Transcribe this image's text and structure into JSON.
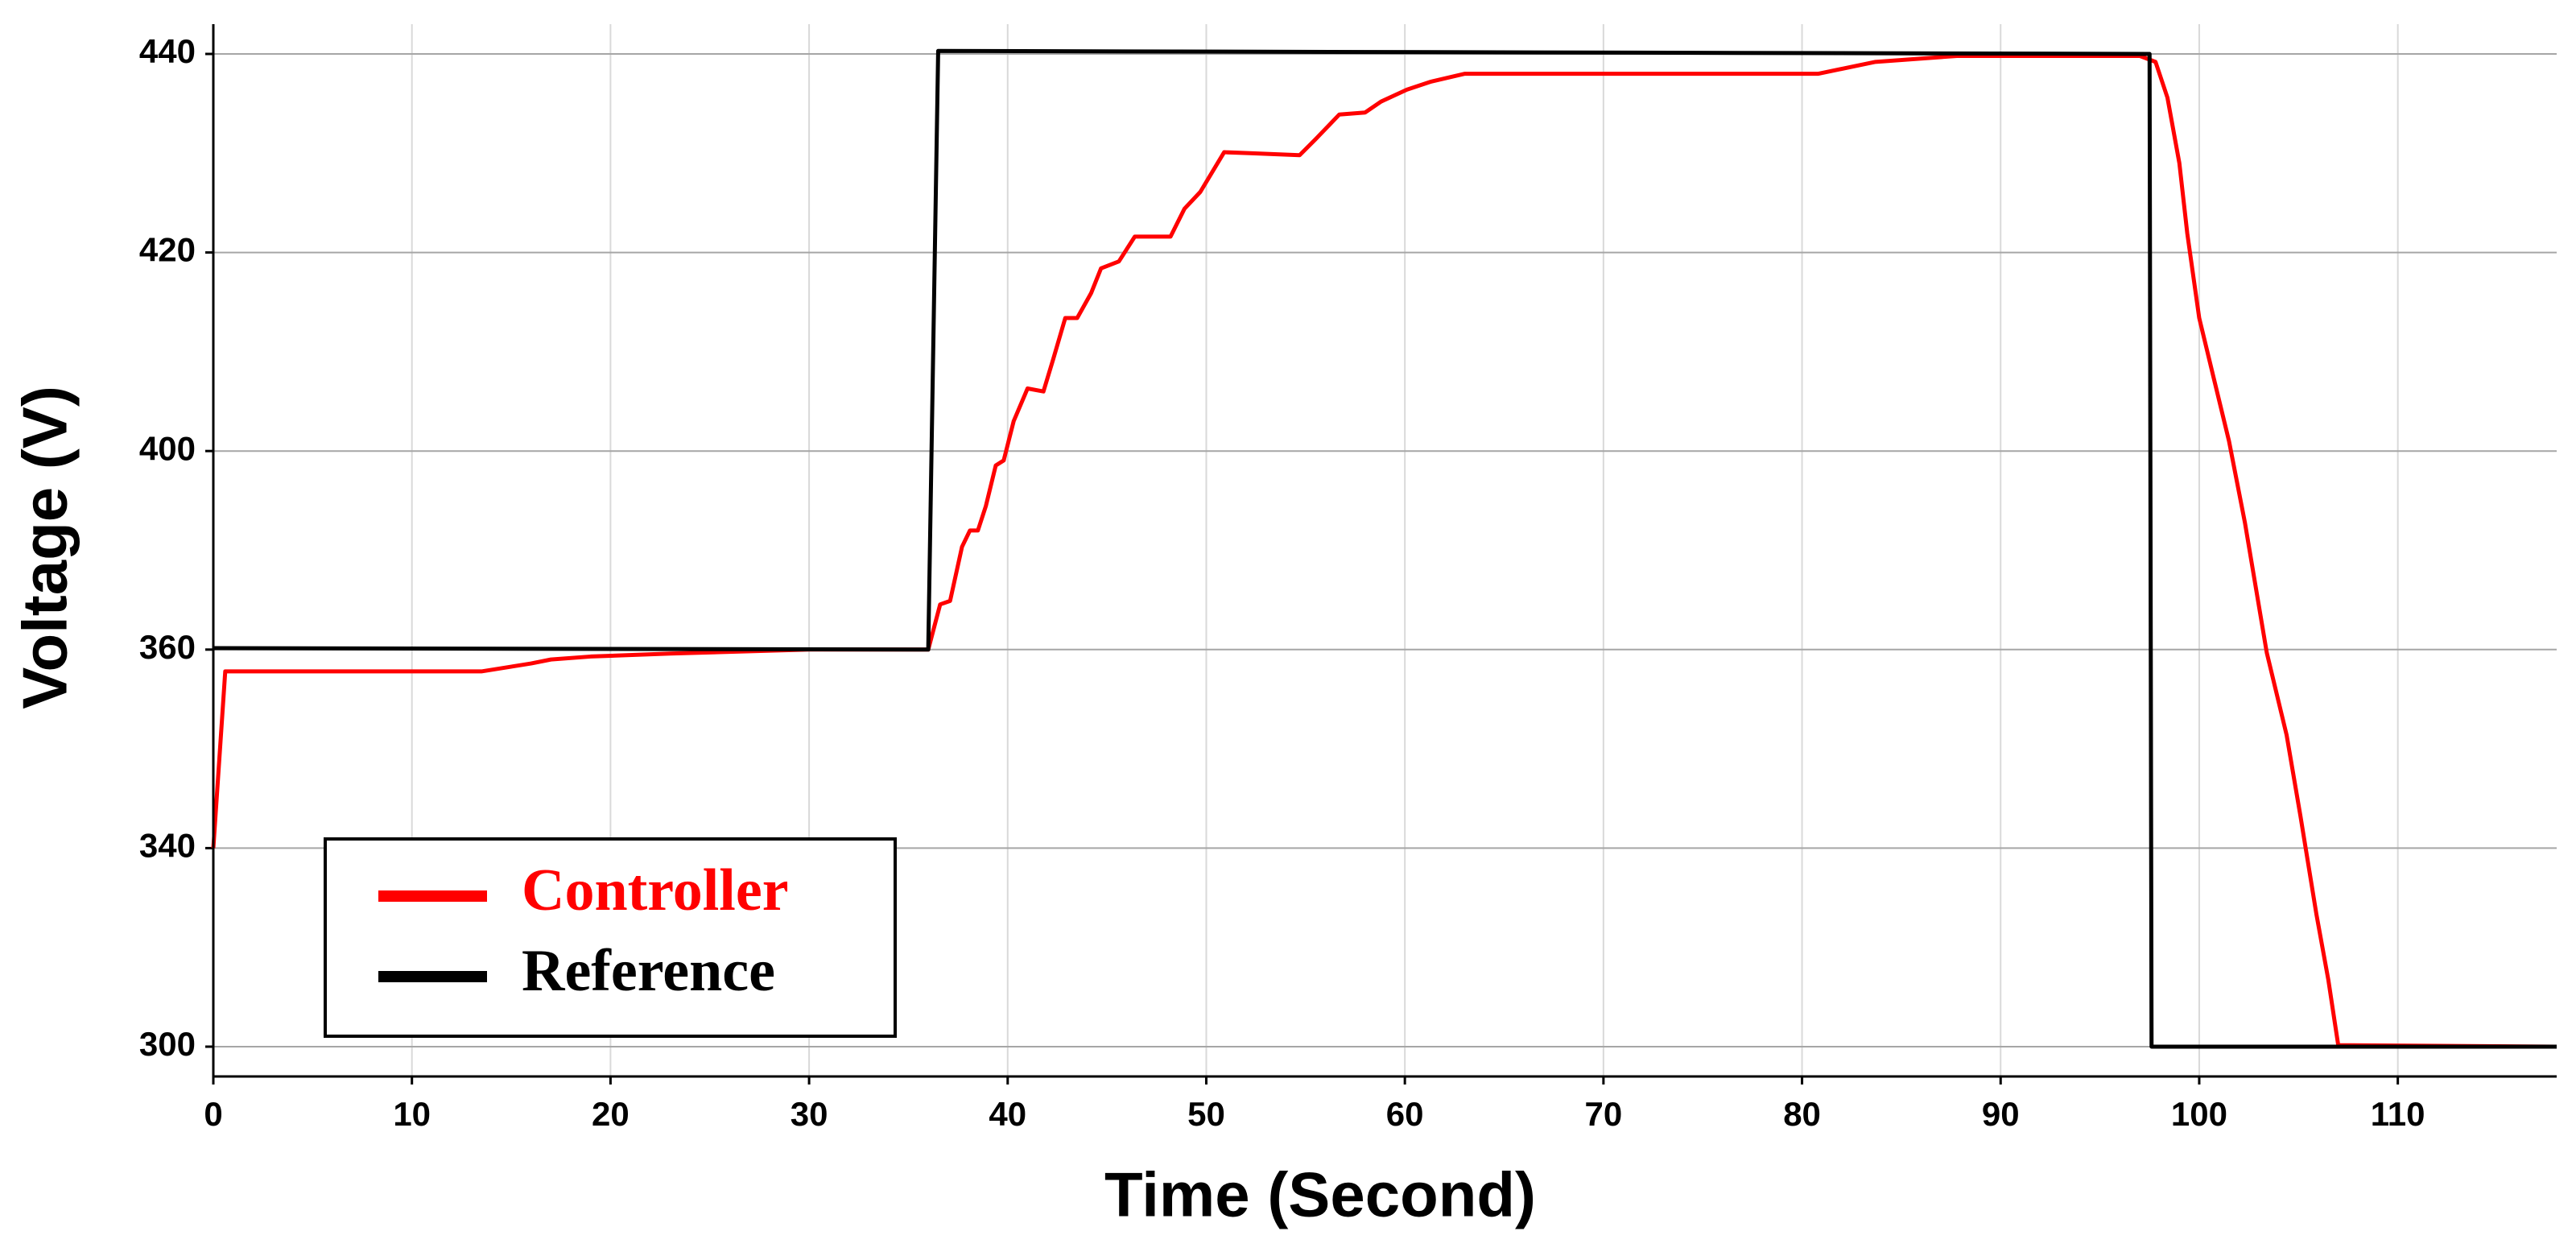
{
  "chart_data": {
    "type": "line",
    "xlabel": "Time (Second)",
    "ylabel": "Voltage (V)",
    "xlim": [
      0,
      118
    ],
    "ylim": [
      294,
      443
    ],
    "xticks": [
      0,
      10,
      20,
      30,
      40,
      50,
      60,
      70,
      80,
      90,
      100,
      110
    ],
    "yticks": [
      300,
      340,
      360,
      400,
      420,
      440
    ],
    "grid": true,
    "legend": "lower left",
    "series": [
      {
        "name": "Controller",
        "color": "#ff0000",
        "x": [
          0,
          0.6,
          13.5,
          16,
          17,
          19,
          23,
          30,
          36,
          36.6,
          37.1,
          37.7,
          38.1,
          38.5,
          38.9,
          39.4,
          39.8,
          40.3,
          41,
          41.8,
          42.3,
          42.9,
          43.5,
          44.2,
          44.7,
          45.6,
          46.4,
          48.2,
          48.9,
          49.7,
          50.9,
          52.2,
          54.7,
          55.5,
          56.7,
          58,
          58.8,
          60.1,
          61.3,
          63,
          80.8,
          83.7,
          87.8,
          97,
          97.8,
          98.4,
          99,
          99.4,
          100,
          100.7,
          101.5,
          102.3,
          103.4,
          104.4,
          105.1,
          105.9,
          106.5,
          107,
          118
        ],
        "values": [
          340,
          357.8,
          357.8,
          358.6,
          359,
          359.3,
          359.6,
          360,
          360,
          369.1,
          369.8,
          380.7,
          384,
          384,
          388.9,
          397.1,
          398.1,
          403,
          406.3,
          406,
          409.3,
          413.4,
          413.4,
          415.9,
          418.4,
          419.1,
          421.6,
          421.6,
          424.4,
          426.1,
          430.1,
          430,
          429.8,
          431.4,
          433.9,
          434.1,
          435.2,
          436.4,
          437.2,
          438,
          438,
          439.2,
          439.8,
          439.8,
          439.2,
          435.6,
          429,
          421.9,
          413.4,
          407.6,
          401,
          385.6,
          359.7,
          351.4,
          343.2,
          326.7,
          313.5,
          300.3,
          300
        ]
      },
      {
        "name": "Reference",
        "color": "#000000",
        "x": [
          0,
          36,
          36.5,
          97.5,
          97.6,
          118
        ],
        "values": [
          360.3,
          360,
          440.3,
          440,
          300,
          300
        ]
      }
    ]
  }
}
